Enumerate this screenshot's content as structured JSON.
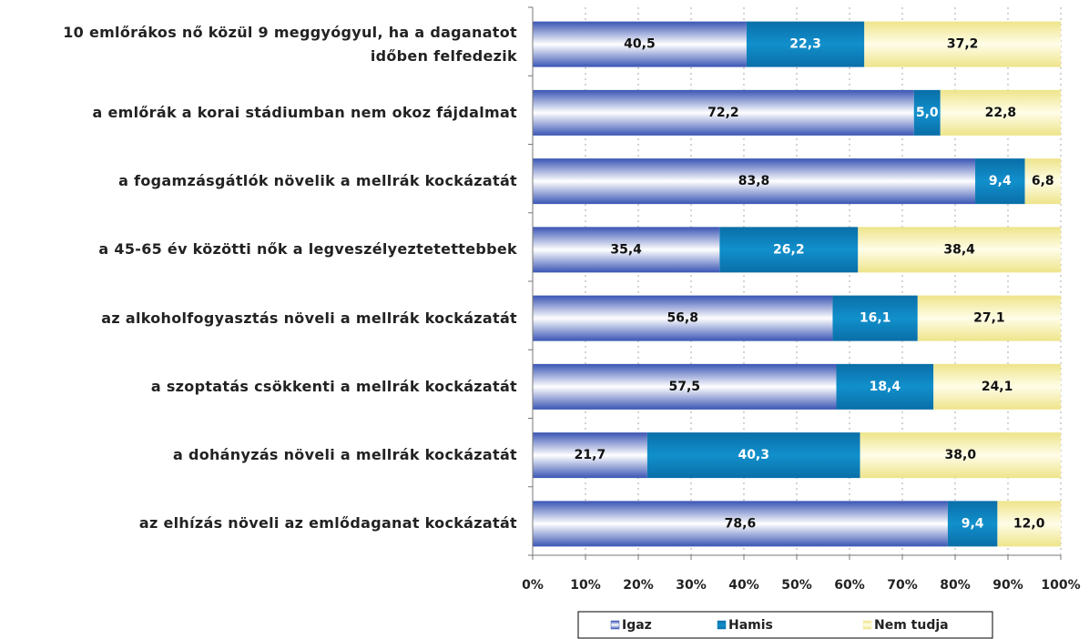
{
  "chart_data": {
    "type": "stacked-bar-horizontal",
    "categories": [
      "10 emlőrákos nő közül 9 meggyógyul, ha a daganatot időben felfedezik",
      "a emlőrák a korai stádiumban nem okoz fájdalmat",
      "a fogamzásgátlók növelik a mellrák kockázatát",
      "a 45-65 év közötti nők a legveszélyeztetettebbek",
      "az alkoholfogyasztás növeli a mellrák kockázatát",
      "a szoptatás csökkenti a mellrák kockázatát",
      "a dohányzás növeli a mellrák kockázatát",
      "az elhízás növeli az emlődaganat kockázatát"
    ],
    "series": [
      {
        "name": "Igaz",
        "color": "#3a55b4",
        "values": [
          40.5,
          72.2,
          83.8,
          35.4,
          56.8,
          57.5,
          21.7,
          78.6
        ],
        "value_labels": [
          "40,5",
          "72,2",
          "83,8",
          "35,4",
          "56,8",
          "57,5",
          "21,7",
          "78,6"
        ]
      },
      {
        "name": "Hamis",
        "color": "#0a7bbd",
        "values": [
          22.3,
          5.0,
          9.4,
          26.2,
          16.1,
          18.4,
          40.3,
          9.4
        ],
        "value_labels": [
          "22,3",
          "5,0",
          "9,4",
          "26,2",
          "16,1",
          "18,4",
          "40,3",
          "9,4"
        ]
      },
      {
        "name": "Nem tudja",
        "color": "#f2eb9c",
        "values": [
          37.2,
          22.8,
          6.8,
          38.4,
          27.1,
          24.1,
          38.0,
          12.0
        ],
        "value_labels": [
          "37,2",
          "22,8",
          "6,8",
          "38,4",
          "27,1",
          "24,1",
          "38,0",
          "12,0"
        ]
      }
    ],
    "xlim": [
      0,
      100
    ],
    "xticks": [
      {
        "value": 0,
        "label": "0%"
      },
      {
        "value": 10,
        "label": "10%"
      },
      {
        "value": 20,
        "label": "20%"
      },
      {
        "value": 30,
        "label": "30%"
      },
      {
        "value": 40,
        "label": "40%"
      },
      {
        "value": 50,
        "label": "50%"
      },
      {
        "value": 60,
        "label": "60%"
      },
      {
        "value": 70,
        "label": "70%"
      },
      {
        "value": 80,
        "label": "80%"
      },
      {
        "value": 90,
        "label": "90%"
      },
      {
        "value": 100,
        "label": "100%"
      }
    ],
    "grid": true,
    "legend": "bottom"
  }
}
